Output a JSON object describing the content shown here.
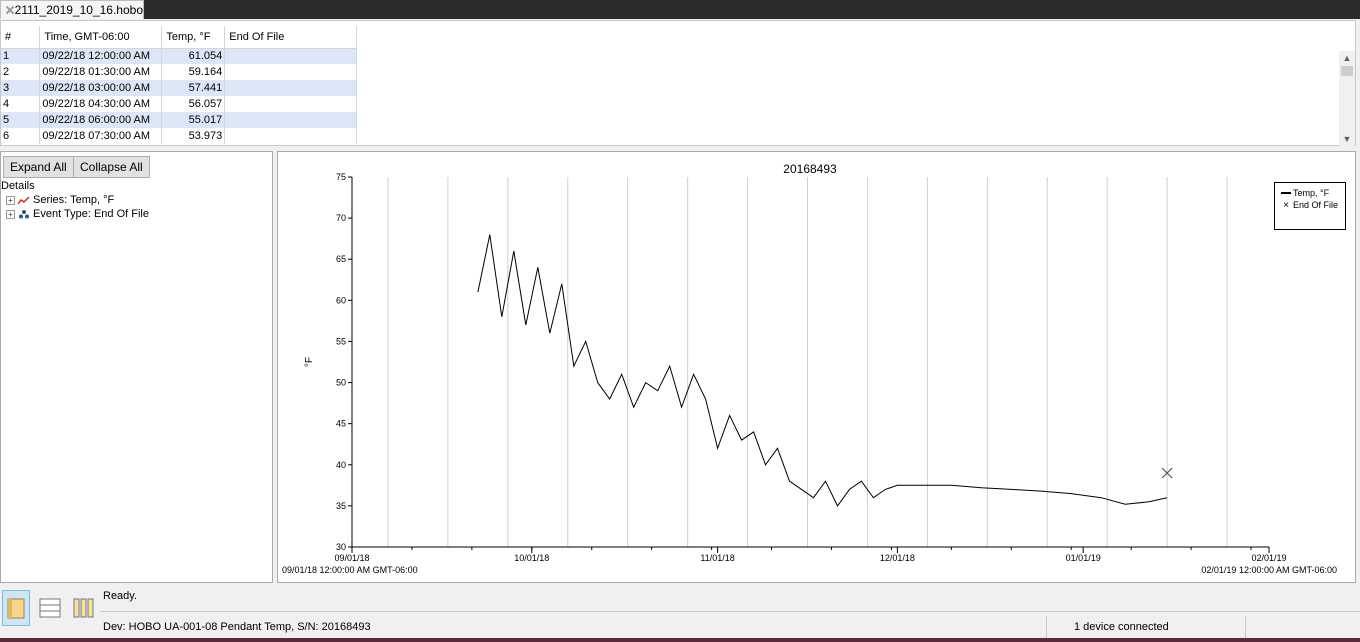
{
  "tab": {
    "label": "2111_2019_10_16.hobo"
  },
  "table": {
    "headers": [
      "#",
      "Time, GMT-06:00",
      "Temp, °F",
      "End Of File"
    ],
    "rows": [
      [
        "1",
        "09/22/18 12:00:00 AM",
        "61.054",
        ""
      ],
      [
        "2",
        "09/22/18 01:30:00 AM",
        "59.164",
        ""
      ],
      [
        "3",
        "09/22/18 03:00:00 AM",
        "57.441",
        ""
      ],
      [
        "4",
        "09/22/18 04:30:00 AM",
        "56.057",
        ""
      ],
      [
        "5",
        "09/22/18 06:00:00 AM",
        "55.017",
        ""
      ],
      [
        "6",
        "09/22/18 07:30:00 AM",
        "53.973",
        ""
      ]
    ]
  },
  "tree": {
    "expand_all": "Expand All",
    "collapse_all": "Collapse All",
    "title": "Details",
    "items": [
      "Series: Temp, °F",
      "Event Type: End Of File"
    ]
  },
  "chart_data": {
    "type": "line",
    "title": "20168493",
    "ylabel": "°F",
    "ylim": [
      30,
      75
    ],
    "yticks": [
      "30",
      "35",
      "40",
      "45",
      "50",
      "55",
      "60",
      "65",
      "70",
      "75"
    ],
    "xlim": [
      "2018-09-01",
      "2019-02-01"
    ],
    "xticks": [
      "09/01/18",
      "10/01/18",
      "11/01/18",
      "12/01/18",
      "01/01/19",
      "02/01/19"
    ],
    "x_start_label": "09/01/18 12:00:00 AM GMT-06:00",
    "x_end_label": "02/01/19 12:00:00 AM GMT-06:00",
    "grid": "vertical",
    "legend": {
      "placement": "top-right",
      "entries": [
        "Temp, °F",
        "End Of File"
      ]
    },
    "series": [
      {
        "name": "Temp, °F",
        "color": "#000000",
        "x": [
          "2018-09-22",
          "2018-09-24",
          "2018-09-26",
          "2018-09-28",
          "2018-09-30",
          "2018-10-02",
          "2018-10-04",
          "2018-10-06",
          "2018-10-08",
          "2018-10-10",
          "2018-10-12",
          "2018-10-14",
          "2018-10-16",
          "2018-10-18",
          "2018-10-20",
          "2018-10-22",
          "2018-10-24",
          "2018-10-26",
          "2018-10-28",
          "2018-10-30",
          "2018-11-01",
          "2018-11-03",
          "2018-11-05",
          "2018-11-07",
          "2018-11-09",
          "2018-11-11",
          "2018-11-13",
          "2018-11-15",
          "2018-11-17",
          "2018-11-19",
          "2018-11-21",
          "2018-11-23",
          "2018-11-25",
          "2018-11-27",
          "2018-11-29",
          "2018-12-01",
          "2018-12-05",
          "2018-12-10",
          "2018-12-15",
          "2018-12-20",
          "2018-12-25",
          "2018-12-30",
          "2019-01-04",
          "2019-01-08",
          "2019-01-12",
          "2019-01-15"
        ],
        "y": [
          61,
          68,
          58,
          66,
          57,
          64,
          56,
          62,
          52,
          55,
          50,
          48,
          51,
          47,
          50,
          49,
          52,
          47,
          51,
          48,
          42,
          46,
          43,
          44,
          40,
          42,
          38,
          37,
          36,
          38,
          35,
          37,
          38,
          36,
          37,
          37.5,
          37.5,
          37.5,
          37.2,
          37,
          36.8,
          36.5,
          36,
          35.2,
          35.5,
          36
        ]
      }
    ],
    "events": [
      {
        "name": "End Of File",
        "x": "2019-01-15",
        "y": 39
      }
    ]
  },
  "status": {
    "ready": "Ready.",
    "device": "Dev: HOBO UA-001-08 Pendant Temp, S/N: 20168493",
    "connected": "1 device connected"
  }
}
